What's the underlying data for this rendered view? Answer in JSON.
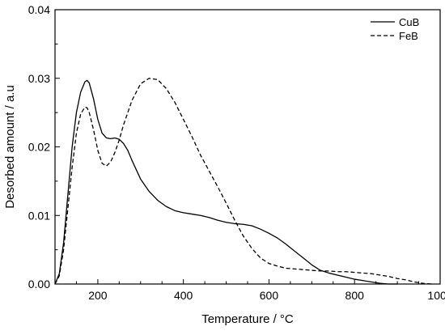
{
  "chart_data": {
    "type": "line",
    "title": "",
    "xlabel": "Temperature / °C",
    "ylabel": "Desorbed amount / a.u",
    "xlim": [
      100,
      1000
    ],
    "ylim": [
      0,
      0.04
    ],
    "x_ticks": [
      200,
      400,
      600,
      800,
      1000
    ],
    "x_tick_labels": [
      "200",
      "400",
      "600",
      "800",
      "1000"
    ],
    "y_ticks": [
      0,
      0.01,
      0.02,
      0.03,
      0.04
    ],
    "y_tick_labels": [
      "0.00",
      "0.01",
      "0.02",
      "0.03",
      "0.04"
    ],
    "grid": false,
    "legend_position": "top-right",
    "series": [
      {
        "name": "CuB",
        "line_style": "solid",
        "color": "#000000",
        "x": [
          100,
          110,
          120,
          130,
          140,
          150,
          160,
          170,
          175,
          180,
          190,
          200,
          210,
          220,
          230,
          240,
          250,
          260,
          270,
          280,
          300,
          320,
          340,
          360,
          380,
          400,
          420,
          440,
          460,
          480,
          500,
          520,
          540,
          560,
          580,
          600,
          620,
          640,
          660,
          680,
          700,
          720,
          740,
          760,
          780,
          800,
          820,
          840,
          860,
          880,
          900
        ],
        "y": [
          0,
          0.0015,
          0.006,
          0.013,
          0.02,
          0.025,
          0.028,
          0.0295,
          0.0297,
          0.0293,
          0.027,
          0.024,
          0.022,
          0.0213,
          0.0212,
          0.0213,
          0.0211,
          0.0205,
          0.0195,
          0.018,
          0.0153,
          0.0135,
          0.0122,
          0.0113,
          0.0107,
          0.0104,
          0.0102,
          0.01,
          0.0097,
          0.0093,
          0.009,
          0.0088,
          0.0087,
          0.0085,
          0.008,
          0.0074,
          0.0067,
          0.0058,
          0.0048,
          0.0038,
          0.0028,
          0.002,
          0.0016,
          0.0013,
          0.001,
          0.0007,
          0.0005,
          0.0003,
          0.0001,
          0,
          0
        ]
      },
      {
        "name": "FeB",
        "line_style": "dashed",
        "color": "#000000",
        "x": [
          100,
          110,
          120,
          130,
          140,
          150,
          160,
          170,
          175,
          180,
          190,
          200,
          210,
          220,
          230,
          240,
          250,
          260,
          280,
          300,
          320,
          340,
          360,
          380,
          400,
          420,
          440,
          460,
          480,
          500,
          520,
          540,
          560,
          580,
          600,
          620,
          640,
          660,
          680,
          700,
          720,
          740,
          760,
          780,
          800,
          820,
          840,
          860,
          880,
          900,
          920,
          940,
          960,
          980
        ],
        "y": [
          0,
          0.0012,
          0.005,
          0.011,
          0.017,
          0.022,
          0.0248,
          0.0258,
          0.0257,
          0.025,
          0.0225,
          0.0195,
          0.0176,
          0.0172,
          0.0178,
          0.0192,
          0.021,
          0.0232,
          0.0268,
          0.0292,
          0.03,
          0.0298,
          0.0285,
          0.0265,
          0.024,
          0.0215,
          0.0188,
          0.0165,
          0.0142,
          0.0118,
          0.0093,
          0.007,
          0.0052,
          0.0038,
          0.003,
          0.0026,
          0.0023,
          0.0022,
          0.0021,
          0.002,
          0.0019,
          0.0019,
          0.0018,
          0.0018,
          0.0017,
          0.0016,
          0.0015,
          0.0013,
          0.0011,
          0.0008,
          0.0006,
          0.0003,
          0.0001,
          0
        ]
      }
    ]
  }
}
